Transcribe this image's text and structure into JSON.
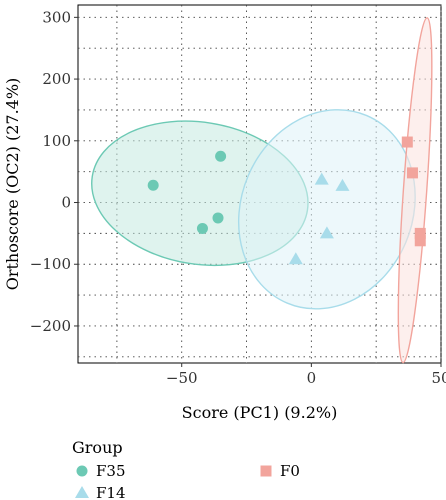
{
  "chart_data": {
    "type": "scatter",
    "xlabel": "Score (PC1) (9.2%)",
    "ylabel": "Orthoscore (OC2) (27.4%)",
    "xlim": [
      -90,
      50
    ],
    "ylim": [
      -260,
      320
    ],
    "x_ticks": [
      -50,
      0,
      50
    ],
    "y_ticks": [
      300,
      200,
      100,
      0,
      -100,
      -200
    ],
    "grid": true,
    "legend_title": "Group",
    "legend_position": "bottom",
    "series": [
      {
        "name": "F35",
        "marker": "circle",
        "color": "#6cc9b4",
        "ellipse_fill": "#c5eae0",
        "ellipse_stroke": "#6cc9b4",
        "points": [
          {
            "x": -61,
            "y": 28
          },
          {
            "x": -35,
            "y": 75
          },
          {
            "x": -36,
            "y": -25
          },
          {
            "x": -42,
            "y": -42
          }
        ]
      },
      {
        "name": "F14",
        "marker": "triangle",
        "color": "#a8dcea",
        "ellipse_fill": "#def2f8",
        "ellipse_stroke": "#a8dcea",
        "points": [
          {
            "x": 4,
            "y": 37
          },
          {
            "x": 12,
            "y": 27
          },
          {
            "x": 6,
            "y": -50
          },
          {
            "x": -6,
            "y": -92
          }
        ]
      },
      {
        "name": "F0",
        "marker": "square",
        "color": "#f2a49c",
        "ellipse_fill": "#fbe2df",
        "ellipse_stroke": "#f2a49c",
        "points": [
          {
            "x": 37,
            "y": 98
          },
          {
            "x": 39,
            "y": 48
          },
          {
            "x": 42,
            "y": -50
          },
          {
            "x": 42,
            "y": -62
          }
        ]
      }
    ]
  }
}
